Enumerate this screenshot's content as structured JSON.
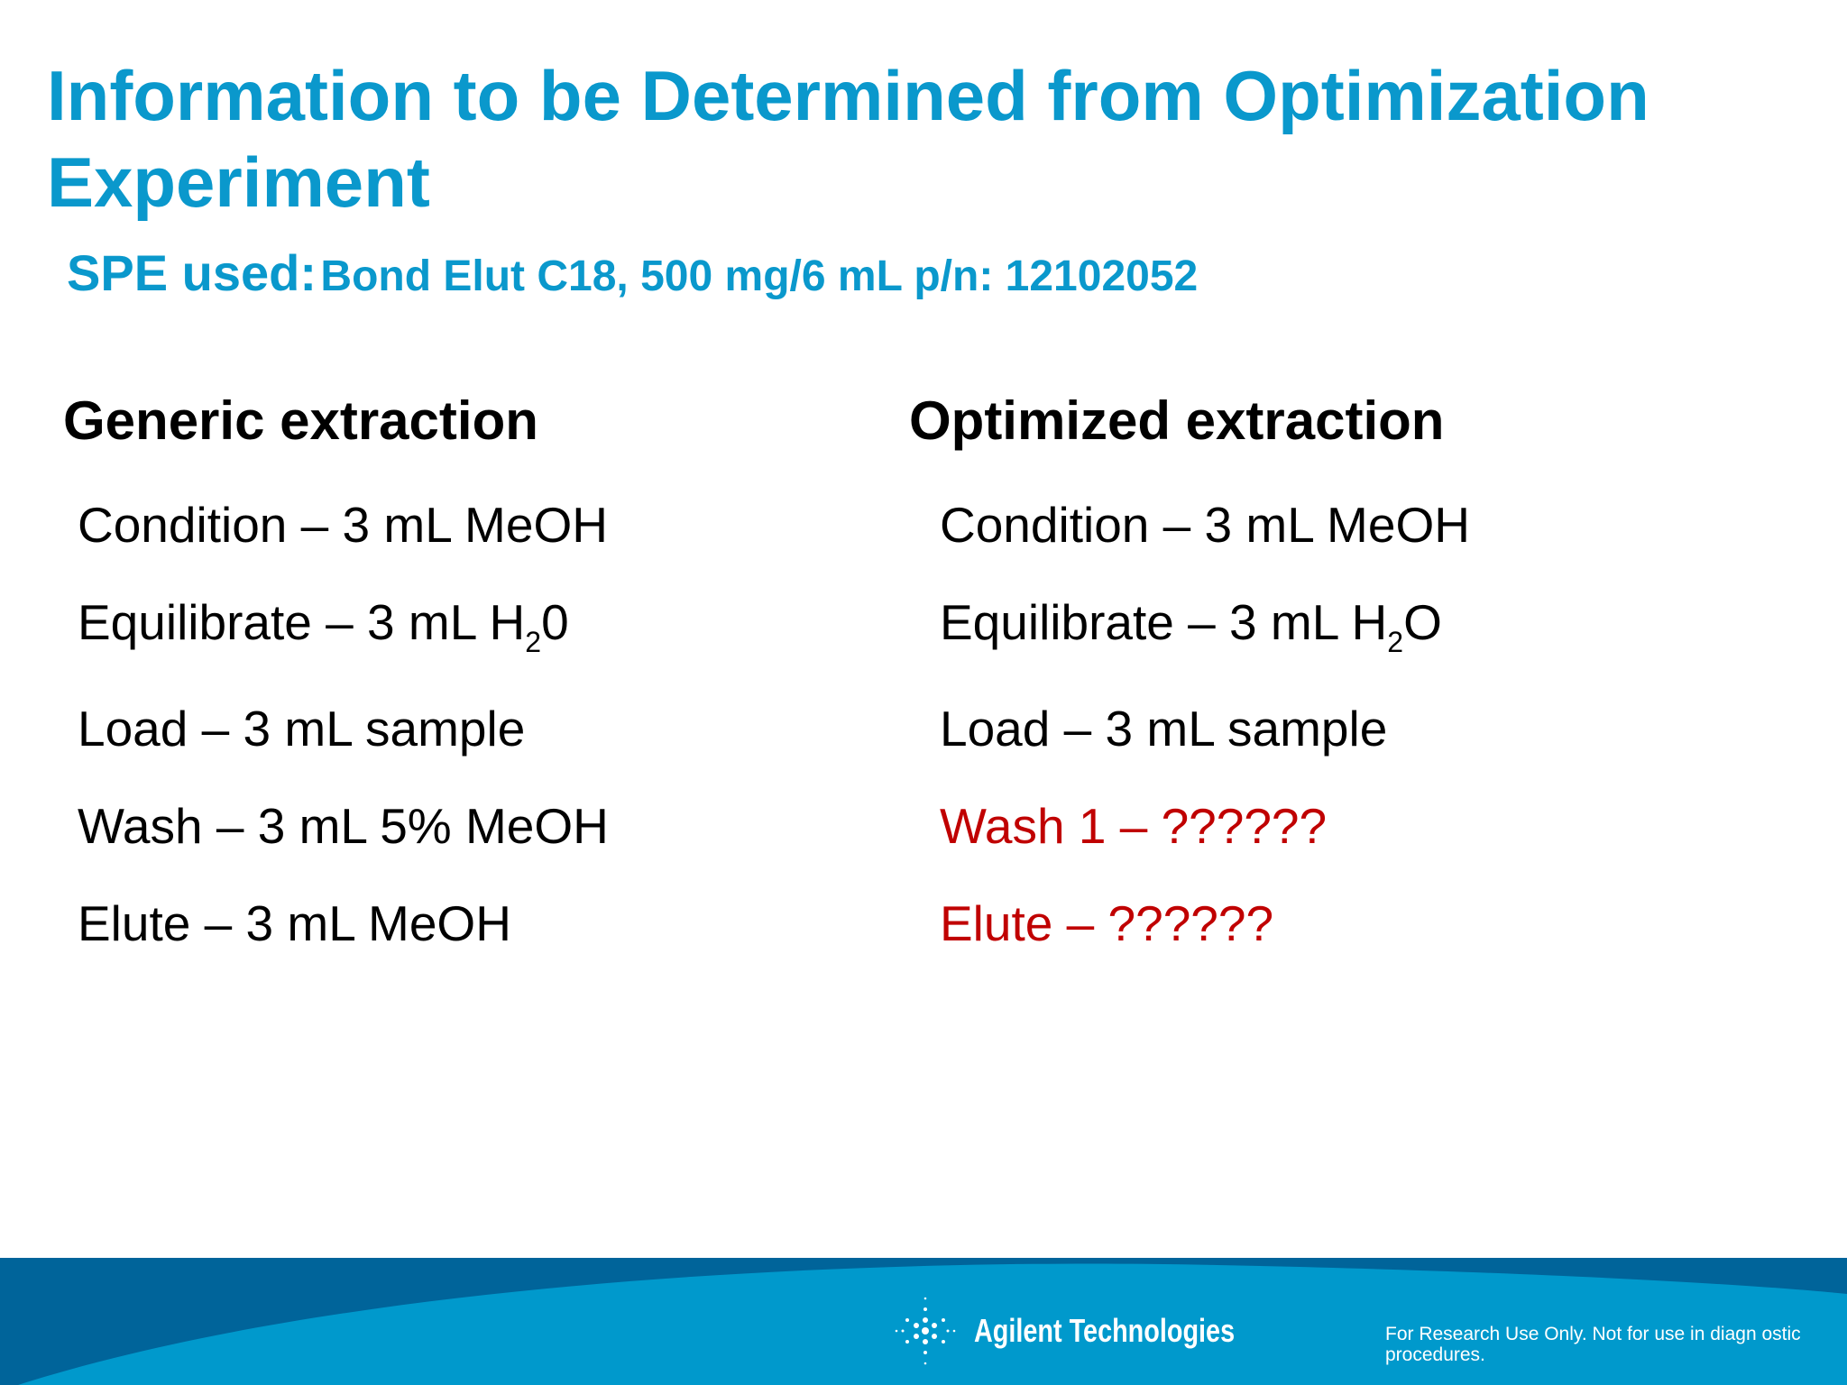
{
  "title": "Information to be Determined from Optimization Experiment",
  "spe": {
    "label": "SPE used:",
    "value": "Bond Elut C18, 500 mg/6 mL p/n: 12102052"
  },
  "generic": {
    "heading": "Generic extraction",
    "items": [
      {
        "pre": "Condition – 3 mL MeOH",
        "sub": "",
        "post": ""
      },
      {
        "pre": "Equilibrate – 3 mL H",
        "sub": "2",
        "post": "0"
      },
      {
        "pre": "Load – 3 mL sample",
        "sub": "",
        "post": ""
      },
      {
        "pre": "Wash – 3 mL 5% MeOH",
        "sub": "",
        "post": ""
      },
      {
        "pre": "Elute – 3 mL MeOH",
        "sub": "",
        "post": ""
      }
    ]
  },
  "optimized": {
    "heading": "Optimized extraction",
    "items": [
      {
        "pre": "Condition – 3 mL MeOH",
        "sub": "",
        "post": ""
      },
      {
        "pre": "Equilibrate – 3 mL H",
        "sub": "2",
        "post": "O"
      },
      {
        "pre": "Load – 3 mL sample",
        "sub": "",
        "post": ""
      },
      {
        "pre": "Wash 1 – ??????",
        "sub": "",
        "post": ""
      },
      {
        "pre": "Elute – ??????",
        "sub": "",
        "post": ""
      }
    ]
  },
  "footer": {
    "logo_text": "Agilent Technologies",
    "disclaimer": "For Research Use Only.  Not for use in diagn ostic procedures."
  },
  "colors": {
    "title": "#0a98cc",
    "unknown": "#c00000",
    "footer_dark": "#00649a",
    "footer_light": "#0099cc"
  }
}
